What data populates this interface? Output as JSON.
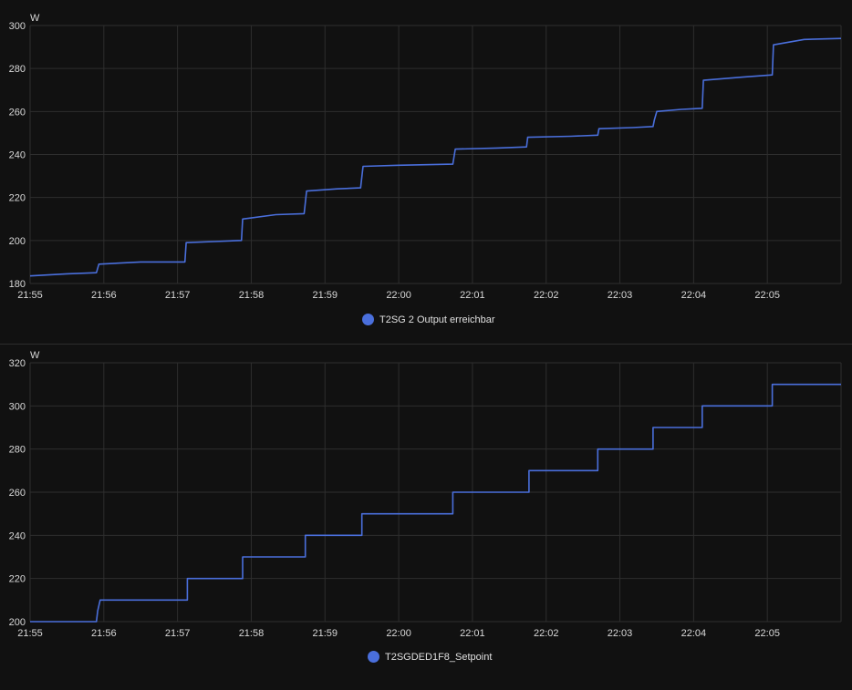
{
  "chart_data": [
    {
      "type": "line",
      "unit": "W",
      "ylim": [
        180,
        300
      ],
      "yticks": [
        180,
        200,
        220,
        240,
        260,
        280,
        300
      ],
      "xlim": [
        "21:55",
        "22:06"
      ],
      "xtick_labels": [
        "21:55",
        "21:56",
        "21:57",
        "21:58",
        "21:59",
        "22:00",
        "22:01",
        "22:02",
        "22:03",
        "22:04",
        "22:05"
      ],
      "grid": true,
      "legend_position": "bottom-center",
      "series": [
        {
          "name": "T2SG 2 Output erreichbar",
          "color": "#4a6fdc",
          "points": [
            [
              "21:55:00",
              183.5
            ],
            [
              "21:55:30",
              184.5
            ],
            [
              "21:55:54",
              185
            ],
            [
              "21:55:56",
              189
            ],
            [
              "21:56:30",
              190
            ],
            [
              "21:57:00",
              190
            ],
            [
              "21:57:06",
              190
            ],
            [
              "21:57:07",
              199
            ],
            [
              "21:57:30",
              199.5
            ],
            [
              "21:57:52",
              200
            ],
            [
              "21:57:53",
              210
            ],
            [
              "21:58:20",
              212
            ],
            [
              "21:58:43",
              212.5
            ],
            [
              "21:58:45",
              223
            ],
            [
              "21:59:10",
              224
            ],
            [
              "21:59:29",
              224.5
            ],
            [
              "21:59:31",
              234.5
            ],
            [
              "22:00:00",
              235
            ],
            [
              "22:00:44",
              235.5
            ],
            [
              "22:00:46",
              242.5
            ],
            [
              "22:01:20",
              243
            ],
            [
              "22:01:44",
              243.5
            ],
            [
              "22:01:45",
              248
            ],
            [
              "22:02:20",
              248.5
            ],
            [
              "22:02:42",
              249
            ],
            [
              "22:02:43",
              252
            ],
            [
              "22:03:10",
              252.5
            ],
            [
              "22:03:27",
              253
            ],
            [
              "22:03:28",
              256
            ],
            [
              "22:03:30",
              260
            ],
            [
              "22:03:50",
              261
            ],
            [
              "22:04:07",
              261.5
            ],
            [
              "22:04:08",
              274.5
            ],
            [
              "22:04:40",
              276
            ],
            [
              "22:05:04",
              277
            ],
            [
              "22:05:05",
              291
            ],
            [
              "22:05:30",
              293.5
            ],
            [
              "22:06:00",
              294
            ]
          ]
        }
      ]
    },
    {
      "type": "line",
      "unit": "W",
      "ylim": [
        200,
        320
      ],
      "yticks": [
        200,
        220,
        240,
        260,
        280,
        300,
        320
      ],
      "xlim": [
        "21:55",
        "22:06"
      ],
      "xtick_labels": [
        "21:55",
        "21:56",
        "21:57",
        "21:58",
        "21:59",
        "22:00",
        "22:01",
        "22:02",
        "22:03",
        "22:04",
        "22:05"
      ],
      "grid": true,
      "legend_position": "bottom-center",
      "series": [
        {
          "name": "T2SGDED1F8_Setpoint",
          "color": "#4a6fdc",
          "points": [
            [
              "21:55:00",
              200
            ],
            [
              "21:55:54",
              200
            ],
            [
              "21:55:55",
              205
            ],
            [
              "21:55:57",
              210
            ],
            [
              "21:57:08",
              210
            ],
            [
              "21:57:08",
              220
            ],
            [
              "21:57:53",
              220
            ],
            [
              "21:57:53",
              230
            ],
            [
              "21:58:44",
              230
            ],
            [
              "21:58:44",
              240
            ],
            [
              "21:59:30",
              240
            ],
            [
              "21:59:30",
              250
            ],
            [
              "22:00:44",
              250
            ],
            [
              "22:00:44",
              260
            ],
            [
              "22:01:46",
              260
            ],
            [
              "22:01:46",
              270
            ],
            [
              "22:02:42",
              270
            ],
            [
              "22:02:42",
              280
            ],
            [
              "22:03:27",
              280
            ],
            [
              "22:03:27",
              290
            ],
            [
              "22:04:07",
              290
            ],
            [
              "22:04:07",
              300
            ],
            [
              "22:05:04",
              300
            ],
            [
              "22:05:04",
              310
            ],
            [
              "22:06:00",
              310
            ]
          ]
        }
      ]
    }
  ]
}
